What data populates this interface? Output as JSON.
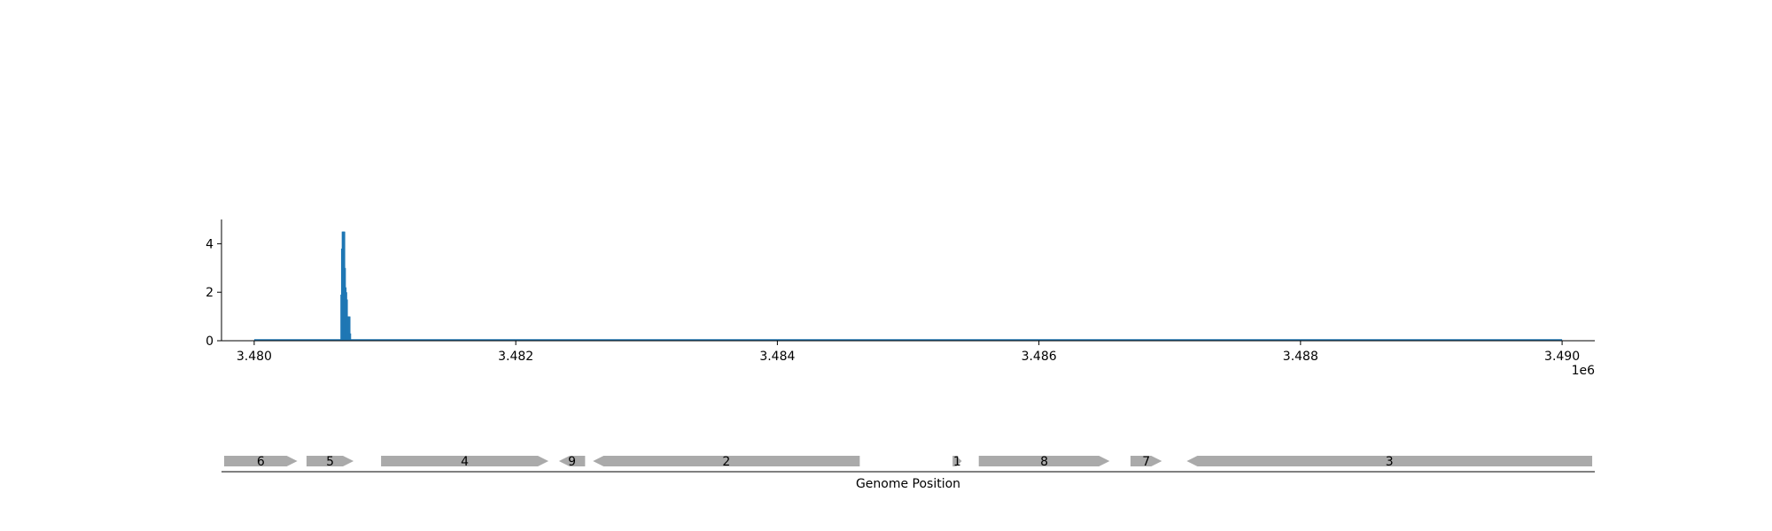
{
  "chart_data": {
    "type": "bar",
    "title": "",
    "xlabel": "Genome Position",
    "ylabel": "",
    "x_offset_label": "1e6",
    "xlim": [
      3479750,
      3490250
    ],
    "ylim": [
      0,
      5
    ],
    "x_ticks": [
      3480000,
      3482000,
      3484000,
      3486000,
      3488000,
      3490000
    ],
    "x_tick_labels": [
      "3.480",
      "3.482",
      "3.484",
      "3.486",
      "3.488",
      "3.490"
    ],
    "y_ticks": [
      0,
      2,
      4
    ],
    "y_tick_labels": [
      "0",
      "2",
      "4"
    ],
    "baseline_range": [
      3480000,
      3490000
    ],
    "series": [
      {
        "color": "#1f77b4",
        "x": [
          3480670,
          3480675,
          3480680,
          3480685,
          3480690,
          3480695,
          3480700,
          3480705,
          3480710,
          3480715,
          3480720,
          3480725,
          3480730
        ],
        "values": [
          1.9,
          3.8,
          4.5,
          4.5,
          3.0,
          2.2,
          2.0,
          1.7,
          1.0,
          1.0,
          1.0,
          1.0,
          0.3
        ]
      }
    ],
    "grid": false,
    "genes": [
      {
        "label": "6",
        "start": 3479770,
        "end": 3480330,
        "strand": "+",
        "color": "#aaaaaa"
      },
      {
        "label": "5",
        "start": 3480400,
        "end": 3480760,
        "strand": "+",
        "color": "#aaaaaa"
      },
      {
        "label": "4",
        "start": 3480970,
        "end": 3482250,
        "strand": "+",
        "color": "#aaaaaa"
      },
      {
        "label": "9",
        "start": 3482330,
        "end": 3482530,
        "strand": "-",
        "color": "#aaaaaa"
      },
      {
        "label": "2",
        "start": 3482590,
        "end": 3484630,
        "strand": "-",
        "color": "#aaaaaa"
      },
      {
        "label": "1",
        "start": 3485340,
        "end": 3485410,
        "strand": "+",
        "color": "#aaaaaa"
      },
      {
        "label": "8",
        "start": 3485540,
        "end": 3486540,
        "strand": "+",
        "color": "#aaaaaa"
      },
      {
        "label": "7",
        "start": 3486700,
        "end": 3486940,
        "strand": "+",
        "color": "#aaaaaa"
      },
      {
        "label": "3",
        "start": 3487130,
        "end": 3490230,
        "strand": "-",
        "color": "#aaaaaa"
      }
    ]
  }
}
